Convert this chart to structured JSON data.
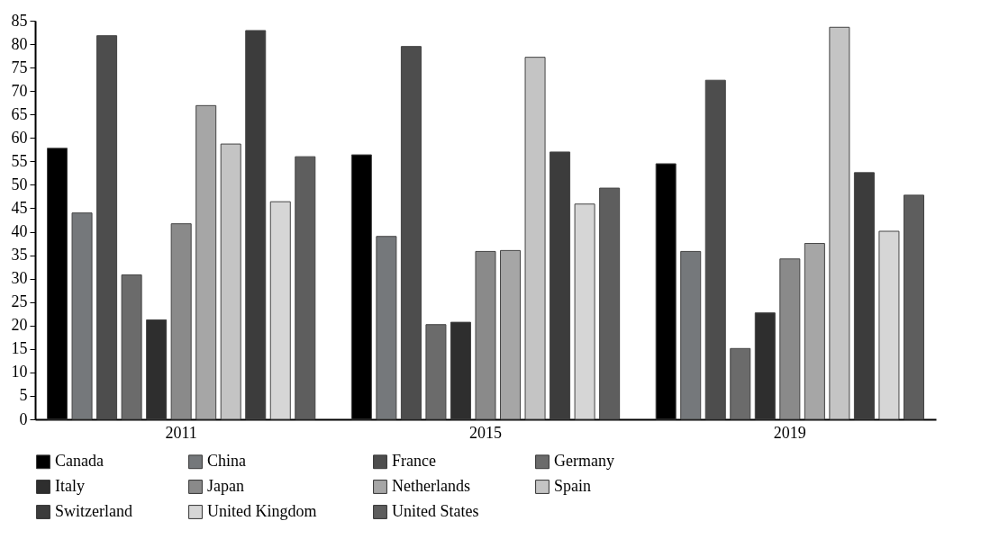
{
  "chart_data": {
    "type": "bar",
    "categories": [
      "2011",
      "2015",
      "2019"
    ],
    "series": [
      {
        "name": "Canada",
        "color": "#000000",
        "values": [
          57.8,
          56.4,
          54.5
        ]
      },
      {
        "name": "China",
        "color": "#75787b",
        "values": [
          44.0,
          39.0,
          35.8
        ]
      },
      {
        "name": "France",
        "color": "#4d4d4d",
        "values": [
          81.8,
          79.5,
          72.3
        ]
      },
      {
        "name": "Germany",
        "color": "#6b6b6b",
        "values": [
          30.8,
          20.2,
          15.1
        ]
      },
      {
        "name": "Italy",
        "color": "#2e2e2e",
        "values": [
          21.2,
          20.7,
          22.7
        ]
      },
      {
        "name": "Japan",
        "color": "#8a8a8a",
        "values": [
          41.7,
          35.8,
          34.2
        ]
      },
      {
        "name": "Netherlands",
        "color": "#a6a6a6",
        "values": [
          66.9,
          36.0,
          37.5
        ]
      },
      {
        "name": "Spain",
        "color": "#c4c4c4",
        "values": [
          58.7,
          77.2,
          83.6
        ]
      },
      {
        "name": "Switzerland",
        "color": "#3c3c3c",
        "values": [
          82.9,
          57.0,
          52.6
        ]
      },
      {
        "name": "United Kingdom",
        "color": "#d6d6d6",
        "values": [
          46.4,
          45.9,
          40.1
        ]
      },
      {
        "name": "United States",
        "color": "#5e5e5e",
        "values": [
          56.0,
          49.3,
          47.8
        ]
      }
    ],
    "ylim": [
      0,
      85
    ],
    "yticks": [
      0,
      5,
      10,
      15,
      20,
      25,
      30,
      35,
      40,
      45,
      50,
      55,
      60,
      65,
      70,
      75,
      80,
      85
    ],
    "legend": "bottom"
  }
}
